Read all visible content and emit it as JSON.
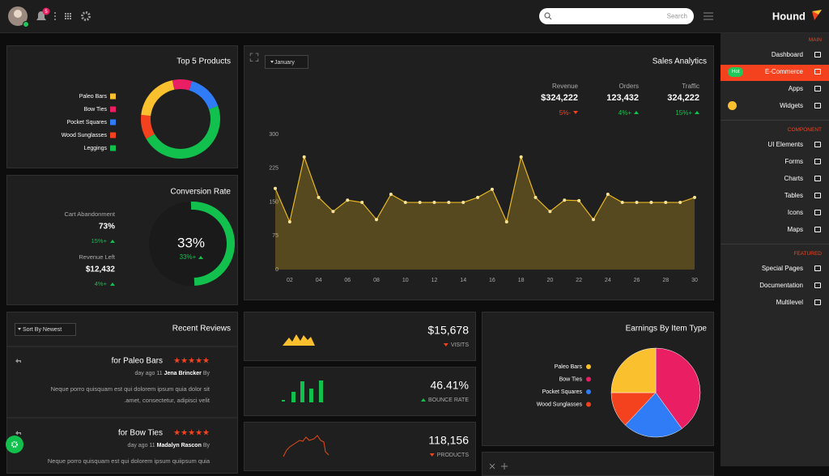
{
  "header": {
    "notifications": "5",
    "search_placeholder": "Search",
    "brand": "Hound"
  },
  "sidebar": {
    "sections": [
      {
        "heading": "MAIN",
        "items": [
          {
            "label": "Dashboard"
          },
          {
            "label": "E-Commerce",
            "badge": "Hot",
            "active": true
          },
          {
            "label": "Apps"
          },
          {
            "label": "Widgets"
          }
        ]
      },
      {
        "heading": "COMPONENT",
        "items": [
          {
            "label": "UI Elements"
          },
          {
            "label": "Forms"
          },
          {
            "label": "Charts"
          },
          {
            "label": "Tables"
          },
          {
            "label": "Icons"
          },
          {
            "label": "Maps"
          }
        ]
      },
      {
        "heading": "FEATURED",
        "items": [
          {
            "label": "Special Pages"
          },
          {
            "label": "Documentation"
          },
          {
            "label": "Multilevel"
          }
        ]
      }
    ]
  },
  "top_products": {
    "title": "Top 5 Products",
    "chart": {
      "type": "donut",
      "categories": [
        "Paleo Bars",
        "Bow Ties",
        "Pocket Squares",
        "Wood Sunglasses",
        "Leggings"
      ],
      "values": [
        20,
        8,
        15,
        10,
        47
      ],
      "colors": [
        "#fbc02d",
        "#e91e63",
        "#2f7cf6",
        "#f4411e",
        "#12c04e"
      ]
    }
  },
  "conversion": {
    "title": "Conversion Rate",
    "metrics": [
      {
        "label": "Cart Abandonment",
        "value": "73%",
        "change": "15%+"
      },
      {
        "label": "Revenue Left",
        "value": "$12,432",
        "change": "4%+"
      }
    ],
    "gauge": {
      "value": "33%",
      "change": "33%+"
    }
  },
  "sales_analytics": {
    "title": "Sales Analytics",
    "month": "January",
    "stats": [
      {
        "label": "Revenue",
        "value": "$324,222",
        "change": "5%-",
        "trend": "down"
      },
      {
        "label": "Orders",
        "value": "123,432",
        "change": "4%+",
        "trend": "up"
      },
      {
        "label": "Traffic",
        "value": "324,222",
        "change": "15%+",
        "trend": "up"
      }
    ],
    "chart": {
      "type": "area",
      "categories": [
        null,
        "02",
        null,
        "04",
        null,
        "06",
        null,
        "08",
        null,
        "10",
        null,
        "12",
        null,
        "14",
        null,
        "16",
        null,
        "18",
        null,
        "20",
        null,
        "22",
        null,
        "24",
        null,
        "26",
        null,
        "28",
        null,
        "30"
      ],
      "values": [
        180,
        106,
        250,
        160,
        129,
        154,
        149,
        111,
        167,
        149,
        149,
        149,
        149,
        149,
        160,
        178,
        106,
        250,
        160,
        129,
        154,
        153,
        111,
        167,
        149,
        149,
        149,
        149,
        149,
        160
      ],
      "ylim": [
        0,
        300
      ],
      "yticks": [
        0,
        75,
        150,
        225,
        300
      ],
      "color": "#e8b820"
    }
  },
  "reviews": {
    "title": "Recent Reviews",
    "sort": "Sort By Newest",
    "items": [
      {
        "product": "for Paleo Bars",
        "stars": "★★★★★",
        "time": "day ago 11",
        "author": "Jena Brincker",
        "by": "By",
        "text": [
          "Neque porro quisquam est qui dolorem ipsum quia dolor sit",
          ".amet, consectetur, adipisci velit"
        ]
      },
      {
        "product": "for Bow Ties",
        "stars": "★★★★★",
        "time": "day ago 11",
        "author": "Madalyn Rascon",
        "by": "By",
        "text": [
          "Neque porro quisquam est qui dolorem ipsum quiipsum quia"
        ]
      }
    ]
  },
  "stat_cards": [
    {
      "value": "$15,678",
      "label": "VISITS",
      "trend": "down"
    },
    {
      "value": "46.41%",
      "label": "BOUNCE RATE",
      "trend": "up"
    },
    {
      "value": "118,156",
      "label": "PRODUCTS",
      "trend": "down"
    }
  ],
  "earnings": {
    "title": "Earnings By Item Type",
    "chart": {
      "type": "pie",
      "categories": [
        "Paleo Bars",
        "Bow Ties",
        "Pocket Squares",
        "Wood Sunglasses"
      ],
      "values": [
        25,
        40,
        22,
        13
      ],
      "colors": [
        "#fbc02d",
        "#e91e63",
        "#2f7cf6",
        "#f4411e"
      ]
    }
  }
}
